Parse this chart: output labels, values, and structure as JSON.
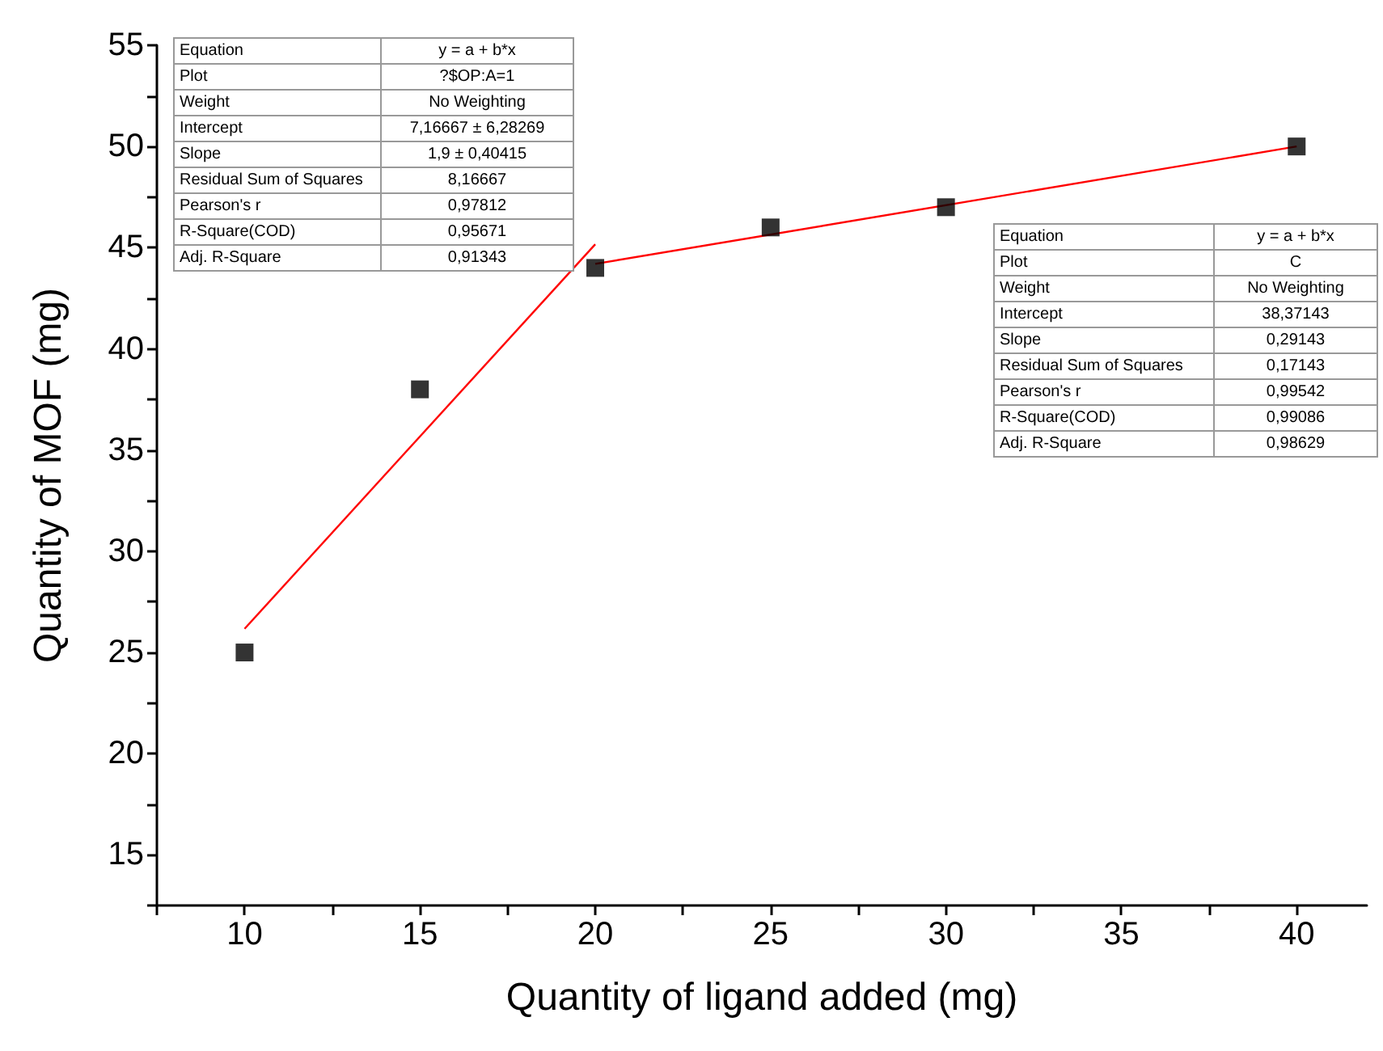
{
  "chart_data": {
    "type": "scatter",
    "xlabel": "Quantity of ligand added (mg)",
    "ylabel": "Quantity of MOF (mg)",
    "x": [
      10,
      15,
      20,
      25,
      30,
      40
    ],
    "series": [
      {
        "color": "#000000",
        "marker": "square",
        "values": [
          25,
          38,
          44,
          46,
          47,
          50
        ]
      },
      {
        "type": "line",
        "color": "#ff0000",
        "marker": "none",
        "line_style": "solid",
        "x": [
          10,
          20
        ],
        "values": [
          26.17,
          45.17
        ]
      },
      {
        "type": "line",
        "color": "#ff0000",
        "marker": "none",
        "line_style": "solid",
        "x": [
          20,
          40
        ],
        "values": [
          44.2,
          50.0
        ]
      }
    ],
    "xlim": [
      7.5,
      42
    ],
    "ylim": [
      12.5,
      55
    ],
    "xticks": [
      {
        "value": 7.5,
        "label": null
      },
      10,
      {
        "value": 12.5,
        "label": null
      },
      15,
      {
        "value": 17.5,
        "label": null
      },
      20,
      {
        "value": 22.5,
        "label": null
      },
      25,
      {
        "value": 27.5,
        "label": null
      },
      30,
      {
        "value": 32.5,
        "label": null
      },
      35,
      {
        "value": 37.5,
        "label": null
      },
      40
    ],
    "yticks": [
      {
        "value": 12.5,
        "label": null
      },
      15,
      {
        "value": 17.5,
        "label": null
      },
      20,
      {
        "value": 22.5,
        "label": null
      },
      25,
      {
        "value": 27.5,
        "label": null
      },
      30,
      {
        "value": 32.5,
        "label": null
      },
      35,
      {
        "value": 37.5,
        "label": null
      },
      40,
      {
        "value": 42.5,
        "label": null
      },
      45,
      {
        "value": 47.5,
        "label": null
      },
      50,
      {
        "value": 52.5,
        "label": null
      },
      55
    ],
    "grid": false,
    "annotations": [
      "Equation",
      "y = a + b*x",
      "Plot",
      "?$OP:A=1",
      "Weight",
      "No Weighting",
      "Intercept",
      "7,16667 ± 6,28269",
      "Slope",
      "1,9 ± 0,40415",
      "Residual Sum of Squares",
      "8,16667",
      "Pearson's r",
      "0,97812",
      "R-Square(COD)",
      "0,95671",
      "Adj. R-Square",
      "0,91343",
      "Equation",
      "y = a + b*x",
      "Plot",
      "C",
      "Weight",
      "No Weighting",
      "Intercept",
      "38,37143",
      "Slope",
      "0,29143",
      "Residual Sum of Squares",
      "0,17143",
      "Pearson's r",
      "0,99542",
      "R-Square(COD)",
      "0,99086",
      "Adj. R-Square",
      "0,98629"
    ]
  }
}
